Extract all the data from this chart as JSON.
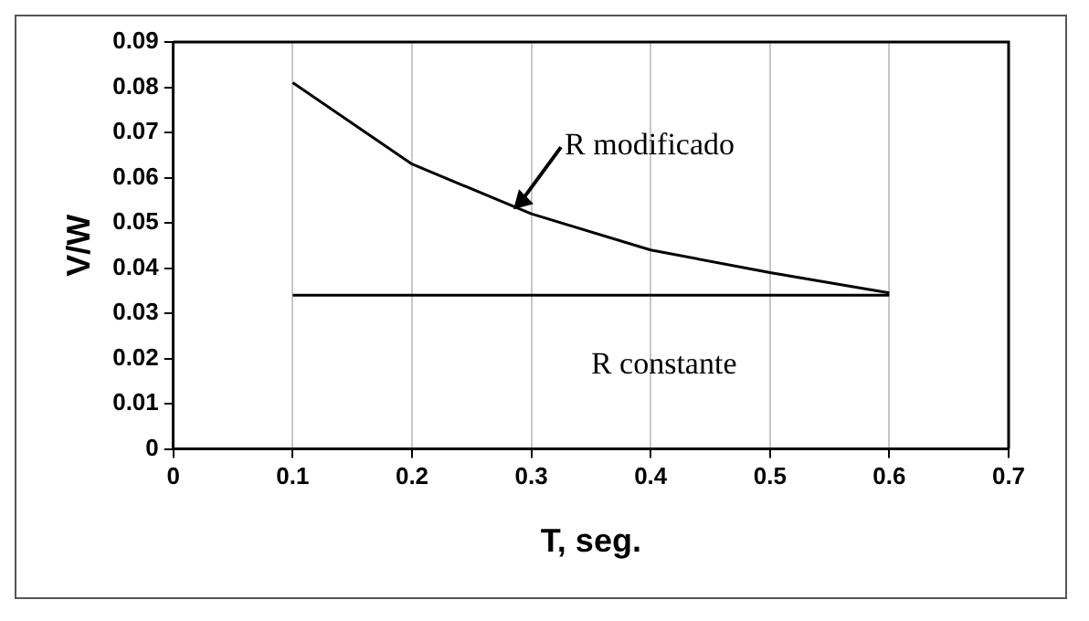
{
  "chart_data": {
    "type": "line",
    "xlabel": "T, seg.",
    "ylabel": "V/W",
    "x": [
      0.1,
      0.2,
      0.3,
      0.4,
      0.5,
      0.6
    ],
    "series": [
      {
        "color": "#000000",
        "values": [
          0.081,
          0.063,
          0.052,
          0.044,
          0.039,
          0.0345
        ]
      },
      {
        "color": "#000000",
        "values": [
          0.034,
          0.034,
          0.034,
          0.034,
          0.034,
          0.034
        ]
      }
    ],
    "xlim": [
      0,
      0.7
    ],
    "xticks": [
      0,
      0.1,
      0.2,
      0.3,
      0.4,
      0.5,
      0.6,
      0.7
    ],
    "ylim": [
      0,
      0.09
    ],
    "yticks": [
      0,
      0.01,
      0.02,
      0.03,
      0.04,
      0.05,
      0.06,
      0.07,
      0.08,
      0.09
    ],
    "grid": "x",
    "marker": "none",
    "line_style": "solid",
    "legend": false,
    "annotations": [
      {
        "text": "R modificado",
        "x": 0.285,
        "y": 0.053
      },
      {
        "text": "R constante",
        "x": 0.35,
        "y": 0.034
      }
    ]
  }
}
